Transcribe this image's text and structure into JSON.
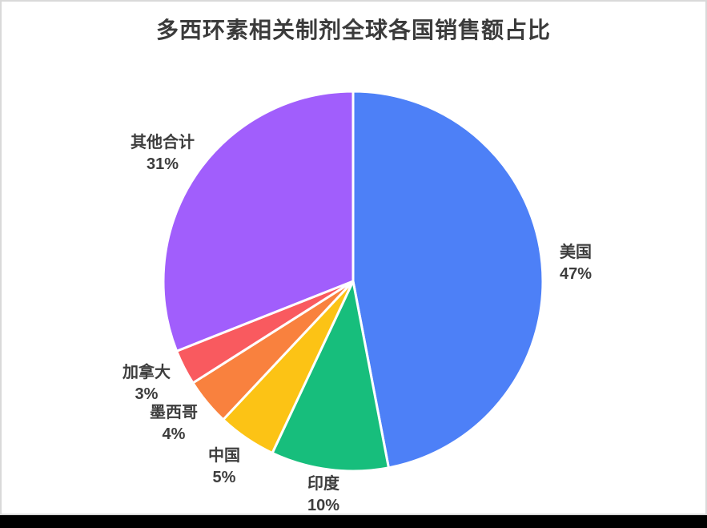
{
  "page": {
    "background_color": "#000000",
    "card_background": "#ffffff",
    "card_border_color": "#d9d9d9",
    "text_color": "#3d3d3d"
  },
  "title": "多西环素相关制剂全球各国销售额占比",
  "chart_data": {
    "type": "pie",
    "title": "多西环素相关制剂全球各国销售额占比",
    "direction": "clockwise",
    "start_angle": "12-o-clock",
    "legend": "none",
    "gap_color": "#ffffff",
    "slices": [
      {
        "label": "美国",
        "value": 47,
        "pct": "47%",
        "color": "#4d80f7"
      },
      {
        "label": "印度",
        "value": 10,
        "pct": "10%",
        "color": "#17be7c"
      },
      {
        "label": "中国",
        "value": 5,
        "pct": "5%",
        "color": "#fcc315"
      },
      {
        "label": "墨西哥",
        "value": 4,
        "pct": "4%",
        "color": "#f9813e"
      },
      {
        "label": "加拿大",
        "value": 3,
        "pct": "3%",
        "color": "#f95a5f"
      },
      {
        "label": "其他合计",
        "value": 31,
        "pct": "31%",
        "color": "#a15efc"
      }
    ]
  }
}
